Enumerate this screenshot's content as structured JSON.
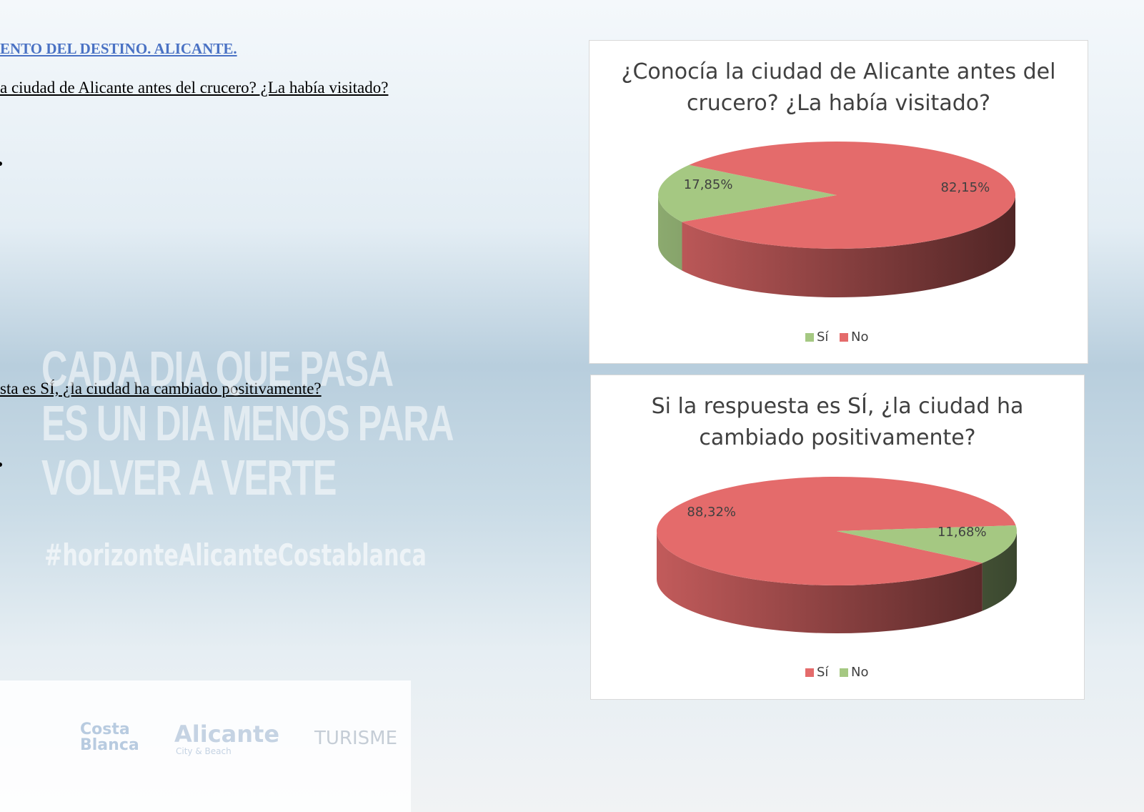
{
  "document": {
    "heading": "ENTO DEL DESTINO. ALICANTE.",
    "question_1": "a ciudad de Alicante antes del crucero? ¿La había visitado?",
    "question_2": "sta es SÍ, ¿la ciudad ha cambiado positivamente?",
    "slogan": [
      "CADA DIA QUE PASA",
      "ES UN DIA MENOS PARA",
      "VOLVER A VERTE"
    ],
    "hashtag": "#horizonteAlicanteCostablanca",
    "logos": [
      "Costa Blanca",
      "Alicante",
      "City & Beach",
      "TURISME"
    ]
  },
  "chart_data": [
    {
      "type": "pie",
      "title": "¿Conocía la ciudad de Alicante antes del crucero? ¿La había visitado?",
      "categories": [
        "Sí",
        "No"
      ],
      "values": [
        17.85,
        82.15
      ],
      "value_labels": [
        "17,85%",
        "82,15%"
      ],
      "colors": [
        "#a5c882",
        "#e46b6b"
      ],
      "legend": "bottom"
    },
    {
      "type": "pie",
      "title": "Si la respuesta es SÍ, ¿la ciudad ha cambiado positivamente?",
      "categories": [
        "Sí",
        "No"
      ],
      "values": [
        88.32,
        11.68
      ],
      "value_labels": [
        "88,32%",
        "11,68%"
      ],
      "colors": [
        "#e46b6b",
        "#a5c882"
      ],
      "legend": "bottom"
    }
  ]
}
